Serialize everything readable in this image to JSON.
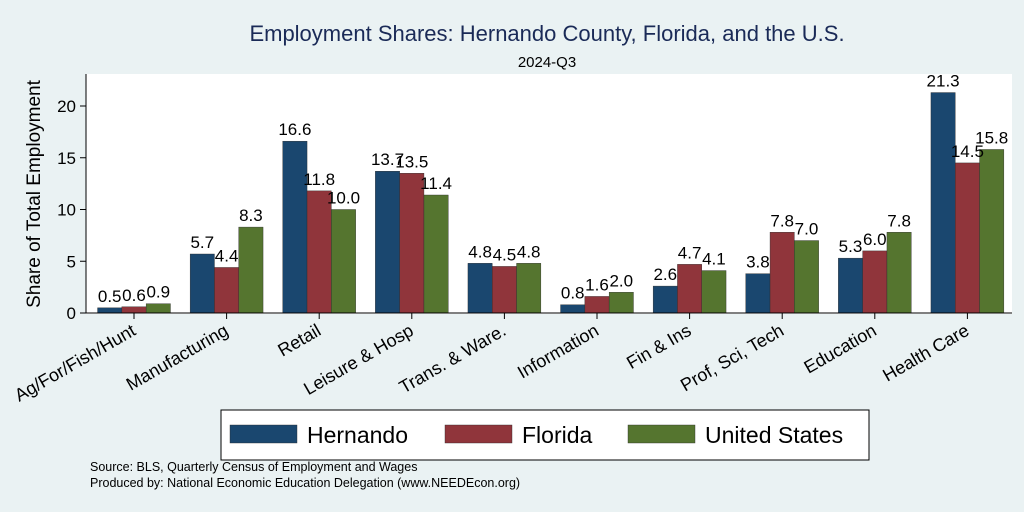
{
  "chart_data": {
    "type": "bar",
    "title": "Employment Shares: Hernando County, Florida, and the U.S.",
    "subtitle": "2024-Q3",
    "ylabel": "Share of Total Employment",
    "xlabel": "",
    "ylim": [
      0,
      23
    ],
    "yticks": [
      0,
      5,
      10,
      15,
      20
    ],
    "grid": false,
    "legend_position": "bottom",
    "categories": [
      "Ag/For/Fish/Hunt",
      "Manufacturing",
      "Retail",
      "Leisure & Hosp",
      "Trans. & Ware.",
      "Information",
      "Fin & Ins",
      "Prof, Sci, Tech",
      "Education",
      "Health Care"
    ],
    "series": [
      {
        "name": "Hernando",
        "color": "#1a476f",
        "values": [
          0.5,
          5.7,
          16.6,
          13.7,
          4.8,
          0.8,
          2.6,
          3.8,
          5.3,
          21.3
        ]
      },
      {
        "name": "Florida",
        "color": "#90353b",
        "values": [
          0.6,
          4.4,
          11.8,
          13.5,
          4.5,
          1.6,
          4.7,
          7.8,
          6.0,
          14.5
        ]
      },
      {
        "name": "United States",
        "color": "#55752f",
        "values": [
          0.9,
          8.3,
          10.0,
          11.4,
          4.8,
          2.0,
          4.1,
          7.0,
          7.8,
          15.8
        ]
      }
    ],
    "notes": [
      "Source: BLS, Quarterly Census of Employment and Wages",
      "Produced by: National Economic Education Delegation (www.NEEDEcon.org)"
    ]
  }
}
